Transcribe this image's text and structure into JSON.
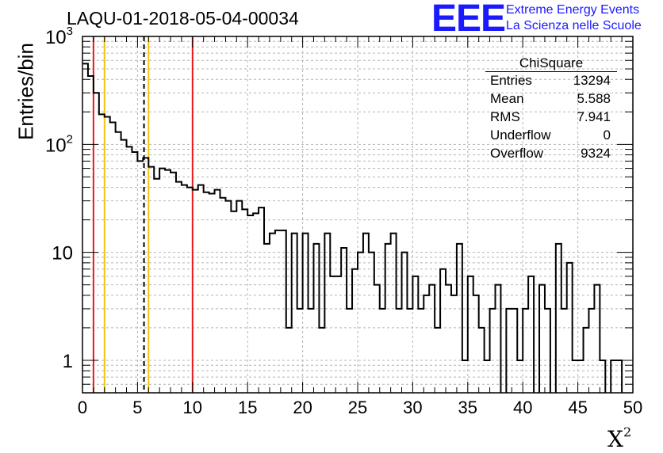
{
  "chart_data": {
    "type": "histogram",
    "title": "LAQU-01-2018-05-04-00034",
    "xlabel": "X",
    "xlabel_sup": "2",
    "ylabel": "Entries/bin",
    "xlim": [
      0,
      50
    ],
    "ylim": [
      0.5,
      1000
    ],
    "yscale": "log",
    "bin_width": 0.5,
    "grid": true,
    "x_ticks": [
      "0",
      "5",
      "10",
      "15",
      "20",
      "25",
      "30",
      "35",
      "40",
      "45",
      "50"
    ],
    "x_tick_values": [
      0,
      5,
      10,
      15,
      20,
      25,
      30,
      35,
      40,
      45,
      50
    ],
    "y_ticks": [
      {
        "value": 1,
        "base": "1",
        "exp": ""
      },
      {
        "value": 10,
        "base": "10",
        "exp": ""
      },
      {
        "value": 100,
        "base": "10",
        "exp": "2"
      },
      {
        "value": 1000,
        "base": "10",
        "exp": "3"
      }
    ],
    "values": [
      560,
      430,
      300,
      190,
      180,
      160,
      130,
      110,
      95,
      85,
      70,
      75,
      62,
      48,
      60,
      58,
      55,
      45,
      42,
      40,
      38,
      42,
      36,
      35,
      38,
      32,
      30,
      24,
      30,
      25,
      22,
      23,
      26,
      12,
      15,
      16,
      16,
      2,
      15,
      3,
      15,
      3,
      12,
      2,
      15,
      6,
      6,
      11,
      3,
      7,
      10,
      15,
      10,
      5,
      3,
      12,
      15,
      3,
      10,
      3,
      6,
      3,
      4,
      5,
      2,
      7,
      5,
      4,
      12,
      1,
      6,
      4,
      2,
      1,
      3,
      5,
      0,
      3,
      3,
      1,
      3,
      6,
      0,
      5,
      3,
      0,
      12,
      3,
      8,
      1,
      1,
      2,
      3,
      5,
      1,
      0,
      1,
      1,
      0
    ],
    "vlines": [
      {
        "x": 1.0,
        "color": "#e8191c",
        "style": "solid"
      },
      {
        "x": 2.0,
        "color": "#f2c40f",
        "style": "solid"
      },
      {
        "x": 5.588,
        "color": "#000000",
        "style": "dashed"
      },
      {
        "x": 6.0,
        "color": "#f2c40f",
        "style": "solid"
      },
      {
        "x": 10.0,
        "color": "#e8191c",
        "style": "solid"
      }
    ]
  },
  "logo": {
    "mark": "EEE",
    "line1": "Extreme Energy Events",
    "line2": "La Scienza nelle Scuole",
    "color": "#1a1aff"
  },
  "stats": {
    "title": "ChiSquare",
    "rows": [
      {
        "key": "Entries",
        "value": "13294"
      },
      {
        "key": "Mean",
        "value": "5.588"
      },
      {
        "key": "RMS",
        "value": "7.941"
      },
      {
        "key": "Underflow",
        "value": "0"
      },
      {
        "key": "Overflow",
        "value": "9324"
      }
    ]
  }
}
